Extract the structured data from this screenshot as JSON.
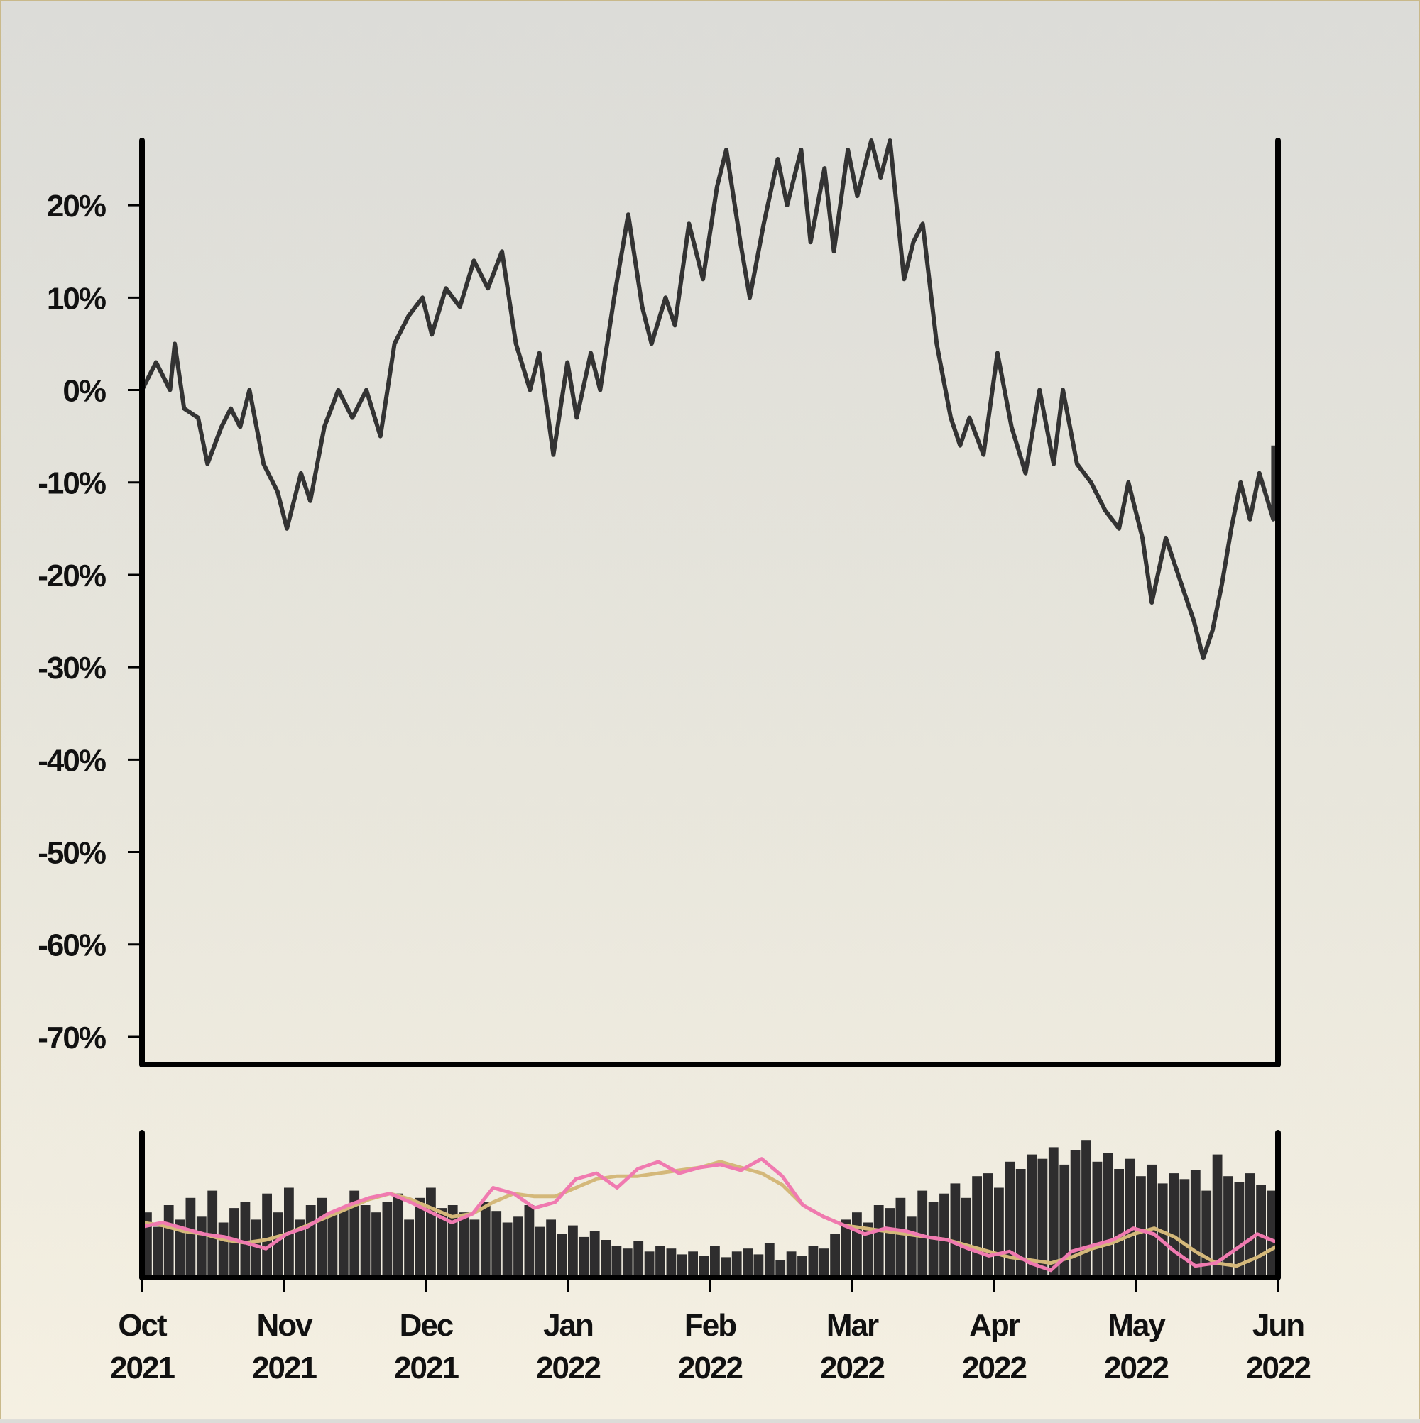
{
  "chart_data": {
    "type": "line",
    "title": "",
    "xlabel": "",
    "ylabel": "",
    "y_tick_labels": [
      "20%",
      "10%",
      "0%",
      "-10%",
      "-20%",
      "-30%",
      "-40%",
      "-50%",
      "-60%",
      "-70%"
    ],
    "y_tick_values": [
      20,
      10,
      0,
      -10,
      -20,
      -30,
      -40,
      -50,
      -60,
      -70
    ],
    "ylim": [
      -73,
      27
    ],
    "x_tick_labels": [
      {
        "month": "Oct",
        "year": "2021"
      },
      {
        "month": "Nov",
        "year": "2021"
      },
      {
        "month": "Dec",
        "year": "2021"
      },
      {
        "month": "Jan",
        "year": "2022"
      },
      {
        "month": "Feb",
        "year": "2022"
      },
      {
        "month": "Mar",
        "year": "2022"
      },
      {
        "month": "Apr",
        "year": "2022"
      },
      {
        "month": "May",
        "year": "2022"
      },
      {
        "month": "Jun",
        "year": "2022"
      }
    ],
    "x_range": [
      "2021-10-01",
      "2022-06-01"
    ],
    "grid": false,
    "series": [
      {
        "values": [
          {
            "date": "2021-10-01",
            "y": 0
          },
          {
            "date": "2021-10-04",
            "y": 3
          },
          {
            "date": "2021-10-07",
            "y": 0
          },
          {
            "date": "2021-10-08",
            "y": 5
          },
          {
            "date": "2021-10-10",
            "y": -2
          },
          {
            "date": "2021-10-13",
            "y": -3
          },
          {
            "date": "2021-10-15",
            "y": -8
          },
          {
            "date": "2021-10-18",
            "y": -4
          },
          {
            "date": "2021-10-20",
            "y": -2
          },
          {
            "date": "2021-10-22",
            "y": -4
          },
          {
            "date": "2021-10-24",
            "y": 0
          },
          {
            "date": "2021-10-27",
            "y": -8
          },
          {
            "date": "2021-10-30",
            "y": -11
          },
          {
            "date": "2021-11-01",
            "y": -15
          },
          {
            "date": "2021-11-04",
            "y": -9
          },
          {
            "date": "2021-11-06",
            "y": -12
          },
          {
            "date": "2021-11-09",
            "y": -4
          },
          {
            "date": "2021-11-12",
            "y": 0
          },
          {
            "date": "2021-11-15",
            "y": -3
          },
          {
            "date": "2021-11-18",
            "y": 0
          },
          {
            "date": "2021-11-21",
            "y": -5
          },
          {
            "date": "2021-11-24",
            "y": 5
          },
          {
            "date": "2021-11-27",
            "y": 8
          },
          {
            "date": "2021-11-30",
            "y": 10
          },
          {
            "date": "2021-12-02",
            "y": 6
          },
          {
            "date": "2021-12-05",
            "y": 11
          },
          {
            "date": "2021-12-08",
            "y": 9
          },
          {
            "date": "2021-12-11",
            "y": 14
          },
          {
            "date": "2021-12-14",
            "y": 11
          },
          {
            "date": "2021-12-17",
            "y": 15
          },
          {
            "date": "2021-12-20",
            "y": 5
          },
          {
            "date": "2021-12-23",
            "y": 0
          },
          {
            "date": "2021-12-25",
            "y": 4
          },
          {
            "date": "2021-12-28",
            "y": -7
          },
          {
            "date": "2021-12-31",
            "y": 3
          },
          {
            "date": "2022-01-02",
            "y": -3
          },
          {
            "date": "2022-01-05",
            "y": 4
          },
          {
            "date": "2022-01-07",
            "y": 0
          },
          {
            "date": "2022-01-10",
            "y": 10
          },
          {
            "date": "2022-01-13",
            "y": 19
          },
          {
            "date": "2022-01-16",
            "y": 9
          },
          {
            "date": "2022-01-18",
            "y": 5
          },
          {
            "date": "2022-01-21",
            "y": 10
          },
          {
            "date": "2022-01-23",
            "y": 7
          },
          {
            "date": "2022-01-26",
            "y": 18
          },
          {
            "date": "2022-01-29",
            "y": 12
          },
          {
            "date": "2022-02-01",
            "y": 22
          },
          {
            "date": "2022-02-03",
            "y": 26
          },
          {
            "date": "2022-02-06",
            "y": 16
          },
          {
            "date": "2022-02-08",
            "y": 10
          },
          {
            "date": "2022-02-11",
            "y": 18
          },
          {
            "date": "2022-02-14",
            "y": 25
          },
          {
            "date": "2022-02-16",
            "y": 20
          },
          {
            "date": "2022-02-19",
            "y": 26
          },
          {
            "date": "2022-02-21",
            "y": 16
          },
          {
            "date": "2022-02-24",
            "y": 24
          },
          {
            "date": "2022-02-26",
            "y": 15
          },
          {
            "date": "2022-03-01",
            "y": 26
          },
          {
            "date": "2022-03-03",
            "y": 21
          },
          {
            "date": "2022-03-06",
            "y": 27
          },
          {
            "date": "2022-03-08",
            "y": 23
          },
          {
            "date": "2022-03-10",
            "y": 27
          },
          {
            "date": "2022-03-13",
            "y": 12
          },
          {
            "date": "2022-03-15",
            "y": 16
          },
          {
            "date": "2022-03-17",
            "y": 18
          },
          {
            "date": "2022-03-20",
            "y": 5
          },
          {
            "date": "2022-03-23",
            "y": -3
          },
          {
            "date": "2022-03-25",
            "y": -6
          },
          {
            "date": "2022-03-27",
            "y": -3
          },
          {
            "date": "2022-03-30",
            "y": -7
          },
          {
            "date": "2022-04-02",
            "y": 4
          },
          {
            "date": "2022-04-05",
            "y": -4
          },
          {
            "date": "2022-04-08",
            "y": -9
          },
          {
            "date": "2022-04-11",
            "y": 0
          },
          {
            "date": "2022-04-14",
            "y": -8
          },
          {
            "date": "2022-04-16",
            "y": 0
          },
          {
            "date": "2022-04-19",
            "y": -8
          },
          {
            "date": "2022-04-22",
            "y": -10
          },
          {
            "date": "2022-04-25",
            "y": -13
          },
          {
            "date": "2022-04-28",
            "y": -15
          },
          {
            "date": "2022-04-30",
            "y": -10
          },
          {
            "date": "2022-05-03",
            "y": -16
          },
          {
            "date": "2022-05-05",
            "y": -23
          },
          {
            "date": "2022-05-08",
            "y": -16
          },
          {
            "date": "2022-05-10",
            "y": -19
          },
          {
            "date": "2022-05-12",
            "y": -22
          },
          {
            "date": "2022-05-14",
            "y": -25
          },
          {
            "date": "2022-05-16",
            "y": -29
          },
          {
            "date": "2022-05-18",
            "y": -26
          },
          {
            "date": "2022-05-20",
            "y": -21
          },
          {
            "date": "2022-05-22",
            "y": -15
          },
          {
            "date": "2022-05-24",
            "y": -10
          },
          {
            "date": "2022-05-26",
            "y": -14
          },
          {
            "date": "2022-05-28",
            "y": -9
          },
          {
            "date": "2022-05-31",
            "y": -14
          },
          {
            "date": "2022-05-31",
            "y": -6
          }
        ]
      }
    ],
    "colors": {
      "line": "#333333",
      "axis": "#000000",
      "volume_bar": "#2e2d2e",
      "ma_fast": "#f07ab0",
      "ma_slow": "#d4b87a"
    },
    "lower_panel": {
      "type": "bar",
      "volume_rel": [
        0.45,
        0.35,
        0.5,
        0.4,
        0.55,
        0.42,
        0.6,
        0.38,
        0.48,
        0.52,
        0.4,
        0.58,
        0.45,
        0.62,
        0.4,
        0.5,
        0.55,
        0.44,
        0.48,
        0.6,
        0.5,
        0.45,
        0.52,
        0.58,
        0.4,
        0.55,
        0.62,
        0.48,
        0.5,
        0.45,
        0.4,
        0.52,
        0.46,
        0.38,
        0.42,
        0.5,
        0.35,
        0.4,
        0.3,
        0.36,
        0.28,
        0.32,
        0.26,
        0.22,
        0.2,
        0.25,
        0.18,
        0.22,
        0.2,
        0.16,
        0.18,
        0.15,
        0.22,
        0.14,
        0.18,
        0.2,
        0.16,
        0.24,
        0.12,
        0.18,
        0.15,
        0.22,
        0.2,
        0.3,
        0.4,
        0.45,
        0.38,
        0.5,
        0.48,
        0.55,
        0.42,
        0.6,
        0.52,
        0.58,
        0.65,
        0.55,
        0.7,
        0.72,
        0.62,
        0.8,
        0.75,
        0.85,
        0.82,
        0.9,
        0.78,
        0.88,
        0.95,
        0.8,
        0.86,
        0.75,
        0.82,
        0.7,
        0.78,
        0.65,
        0.72,
        0.68,
        0.74,
        0.6,
        0.85,
        0.7,
        0.66,
        0.72,
        0.64,
        0.6
      ],
      "ma_fast_rel": [
        0.35,
        0.38,
        0.34,
        0.3,
        0.28,
        0.24,
        0.2,
        0.3,
        0.35,
        0.44,
        0.5,
        0.55,
        0.58,
        0.52,
        0.45,
        0.38,
        0.44,
        0.62,
        0.58,
        0.48,
        0.52,
        0.68,
        0.72,
        0.62,
        0.75,
        0.8,
        0.72,
        0.76,
        0.78,
        0.74,
        0.82,
        0.7,
        0.5,
        0.42,
        0.36,
        0.3,
        0.34,
        0.32,
        0.28,
        0.26,
        0.2,
        0.15,
        0.18,
        0.1,
        0.05,
        0.18,
        0.22,
        0.26,
        0.34,
        0.3,
        0.18,
        0.08,
        0.1,
        0.2,
        0.3,
        0.24
      ],
      "ma_slow_rel": [
        0.38,
        0.36,
        0.32,
        0.3,
        0.26,
        0.24,
        0.26,
        0.3,
        0.36,
        0.42,
        0.48,
        0.54,
        0.58,
        0.54,
        0.48,
        0.42,
        0.44,
        0.52,
        0.58,
        0.56,
        0.56,
        0.62,
        0.68,
        0.7,
        0.7,
        0.72,
        0.74,
        0.76,
        0.8,
        0.76,
        0.72,
        0.64,
        0.5,
        0.42,
        0.36,
        0.34,
        0.32,
        0.3,
        0.28,
        0.26,
        0.22,
        0.18,
        0.14,
        0.12,
        0.1,
        0.14,
        0.2,
        0.24,
        0.3,
        0.34,
        0.28,
        0.18,
        0.1,
        0.08,
        0.14,
        0.22
      ]
    }
  }
}
